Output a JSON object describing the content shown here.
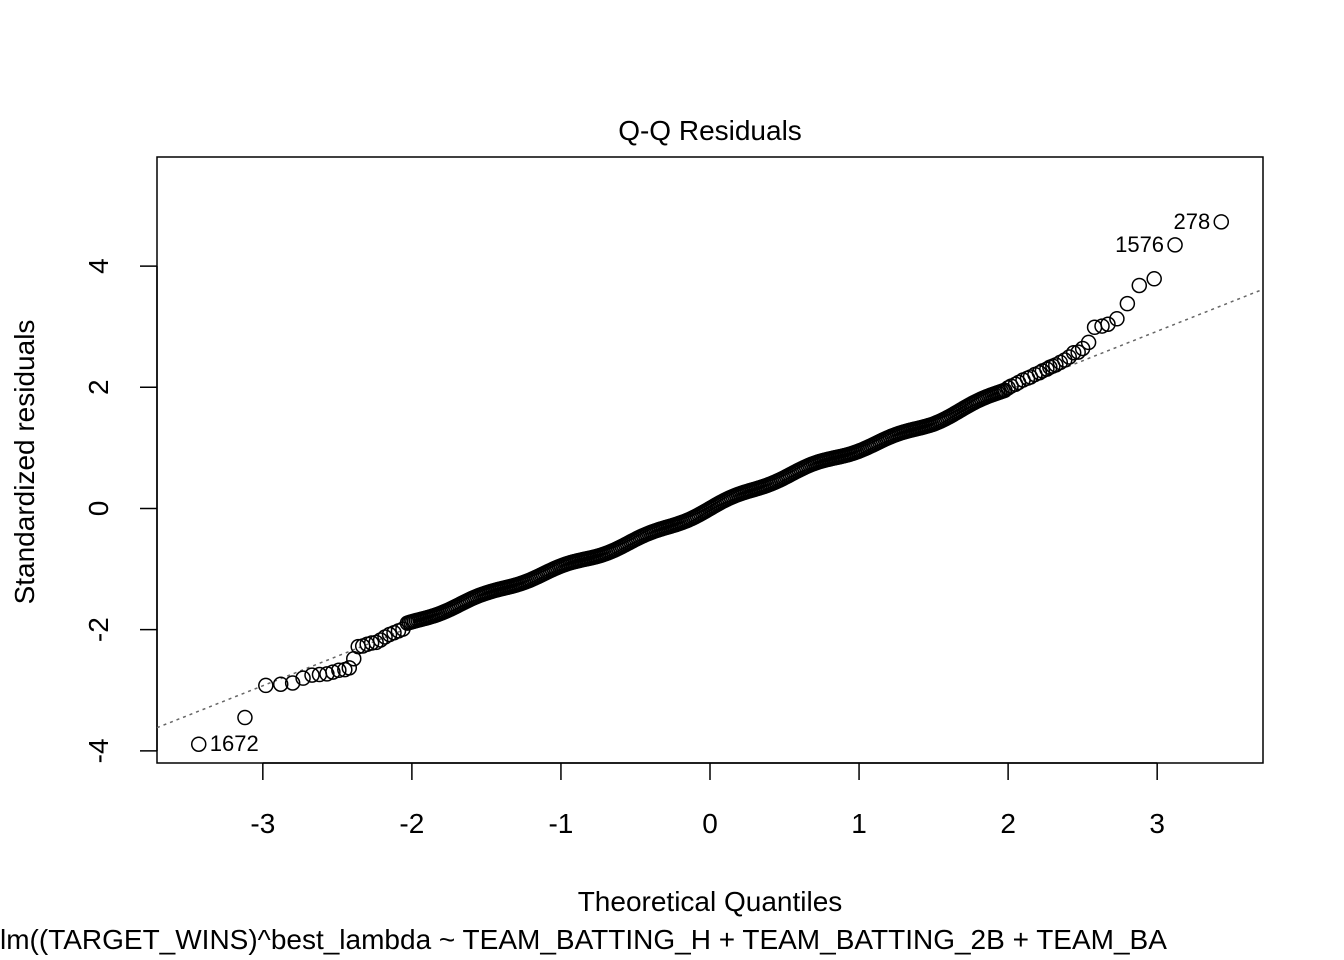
{
  "chart_data": {
    "type": "scatter",
    "title": "Q-Q Residuals",
    "xlabel": "Theoretical Quantiles",
    "ylabel": "Standardized residuals",
    "subtitle": "lm((TARGET_WINS)^best_lambda ~ TEAM_BATTING_H + TEAM_BATTING_2B + TEAM_BA",
    "xlim": [
      -3.71,
      3.71
    ],
    "ylim": [
      -4.2,
      5.8
    ],
    "xticks": [
      -3,
      -2,
      -1,
      0,
      1,
      2,
      3
    ],
    "yticks": [
      -4,
      -2,
      0,
      2,
      4
    ],
    "grid": false,
    "reference_line": {
      "style": "dotted",
      "color": "#666666",
      "slope": 0.975,
      "intercept": 0.0
    },
    "labeled_points": [
      {
        "label": "278",
        "x": 3.43,
        "y": 4.73
      },
      {
        "label": "1576",
        "x": 3.12,
        "y": 4.35
      },
      {
        "label": "1672",
        "x": -3.43,
        "y": -3.89
      }
    ],
    "points": [
      [
        3.43,
        4.73
      ],
      [
        3.12,
        4.35
      ],
      [
        2.98,
        3.79
      ],
      [
        2.88,
        3.68
      ],
      [
        2.8,
        3.38
      ],
      [
        2.73,
        3.13
      ],
      [
        2.67,
        3.04
      ],
      [
        2.63,
        3.01
      ],
      [
        2.58,
        2.99
      ],
      [
        2.54,
        2.74
      ],
      [
        2.5,
        2.64
      ],
      [
        2.47,
        2.58
      ],
      [
        2.44,
        2.57
      ],
      [
        2.41,
        2.5
      ],
      [
        2.38,
        2.45
      ],
      [
        2.35,
        2.41
      ],
      [
        2.32,
        2.37
      ],
      [
        2.3,
        2.35
      ],
      [
        2.28,
        2.33
      ],
      [
        2.26,
        2.3
      ],
      [
        2.23,
        2.27
      ],
      [
        2.21,
        2.24
      ],
      [
        2.18,
        2.21
      ],
      [
        2.15,
        2.17
      ],
      [
        2.13,
        2.15
      ],
      [
        2.1,
        2.12
      ],
      [
        2.07,
        2.08
      ],
      [
        2.05,
        2.05
      ],
      [
        2.02,
        2.02
      ],
      [
        2.0,
        1.99
      ],
      [
        -3.43,
        -3.89
      ],
      [
        -3.12,
        -3.45
      ],
      [
        -2.98,
        -2.92
      ],
      [
        -2.88,
        -2.9
      ],
      [
        -2.8,
        -2.88
      ],
      [
        -2.73,
        -2.8
      ],
      [
        -2.67,
        -2.75
      ],
      [
        -2.62,
        -2.74
      ],
      [
        -2.57,
        -2.73
      ],
      [
        -2.53,
        -2.7
      ],
      [
        -2.49,
        -2.67
      ],
      [
        -2.45,
        -2.66
      ],
      [
        -2.42,
        -2.63
      ],
      [
        -2.39,
        -2.48
      ],
      [
        -2.36,
        -2.28
      ],
      [
        -2.33,
        -2.27
      ],
      [
        -2.3,
        -2.24
      ],
      [
        -2.27,
        -2.22
      ],
      [
        -2.24,
        -2.21
      ],
      [
        -2.21,
        -2.17
      ],
      [
        -2.18,
        -2.12
      ],
      [
        -2.15,
        -2.08
      ],
      [
        -2.12,
        -2.05
      ],
      [
        -2.09,
        -2.02
      ],
      [
        -2.06,
        -1.99
      ]
    ]
  }
}
